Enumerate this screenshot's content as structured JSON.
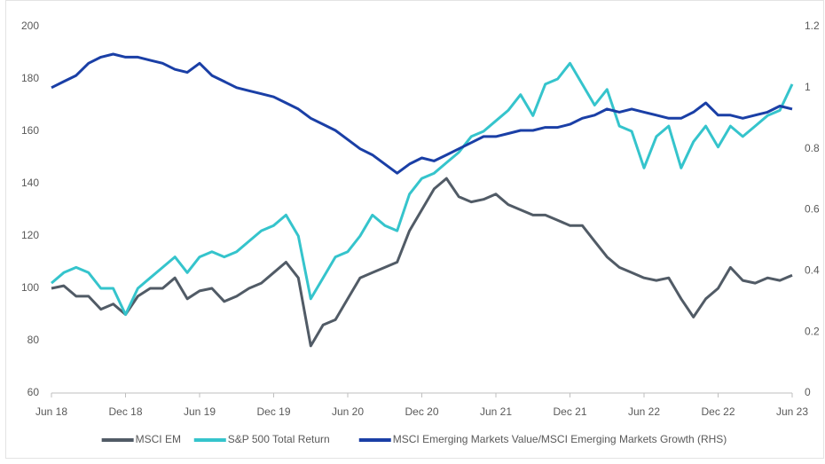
{
  "chart_data": {
    "type": "line",
    "categories": [
      "Jun 18",
      null,
      null,
      null,
      null,
      null,
      "Dec 18",
      null,
      null,
      null,
      null,
      null,
      "Jun 19",
      null,
      null,
      null,
      null,
      null,
      "Dec 19",
      null,
      null,
      null,
      null,
      null,
      "Jun 20",
      null,
      null,
      null,
      null,
      null,
      "Dec 20",
      null,
      null,
      null,
      null,
      null,
      "Jun 21",
      null,
      null,
      null,
      null,
      null,
      "Dec 21",
      null,
      null,
      null,
      null,
      null,
      "Jun 22",
      null,
      null,
      null,
      null,
      null,
      "Dec 22",
      null,
      null,
      null,
      null,
      null,
      "Jun 23"
    ],
    "series": [
      {
        "name": "MSCI EM",
        "color": "#515b66",
        "values": [
          100,
          101,
          97,
          97,
          92,
          94,
          90,
          97,
          100,
          100,
          104,
          96,
          99,
          100,
          95,
          97,
          100,
          102,
          106,
          110,
          104,
          78,
          86,
          88,
          96,
          104,
          106,
          108,
          110,
          122,
          130,
          138,
          142,
          135,
          133,
          134,
          136,
          132,
          130,
          128,
          128,
          126,
          124,
          124,
          118,
          112,
          108,
          106,
          104,
          103,
          104,
          96,
          89,
          96,
          100,
          108,
          103,
          102,
          104,
          103,
          105
        ]
      },
      {
        "name": "S&P 500 Total Return",
        "color": "#35c4cc",
        "values": [
          102,
          106,
          108,
          106,
          100,
          100,
          90,
          100,
          104,
          108,
          112,
          106,
          112,
          114,
          112,
          114,
          118,
          122,
          124,
          128,
          120,
          96,
          104,
          112,
          114,
          120,
          128,
          124,
          122,
          136,
          142,
          144,
          148,
          152,
          158,
          160,
          164,
          168,
          174,
          166,
          178,
          180,
          186,
          178,
          170,
          176,
          162,
          160,
          146,
          158,
          162,
          146,
          156,
          162,
          154,
          162,
          158,
          162,
          166,
          168,
          178
        ]
      },
      {
        "name": "MSCI Emerging Markets Value/MSCI Emerging Markets Growth (RHS)",
        "color": "#1a3fa6",
        "axis": "y2",
        "values": [
          1.0,
          1.02,
          1.04,
          1.08,
          1.1,
          1.11,
          1.1,
          1.1,
          1.09,
          1.08,
          1.06,
          1.05,
          1.08,
          1.04,
          1.02,
          1.0,
          0.99,
          0.98,
          0.97,
          0.95,
          0.93,
          0.9,
          0.88,
          0.86,
          0.83,
          0.8,
          0.78,
          0.75,
          0.72,
          0.75,
          0.77,
          0.76,
          0.78,
          0.8,
          0.82,
          0.84,
          0.84,
          0.85,
          0.86,
          0.86,
          0.87,
          0.87,
          0.88,
          0.9,
          0.91,
          0.93,
          0.92,
          0.93,
          0.92,
          0.91,
          0.9,
          0.9,
          0.92,
          0.95,
          0.91,
          0.91,
          0.9,
          0.91,
          0.92,
          0.94,
          0.93
        ]
      }
    ],
    "ylim": [
      60,
      200
    ],
    "yticks": [
      60,
      80,
      100,
      120,
      140,
      160,
      180,
      200
    ],
    "y2lim": [
      0,
      1.2
    ],
    "y2ticks": [
      0,
      0.2,
      0.4,
      0.6,
      0.8,
      1,
      1.2
    ],
    "grid": false,
    "legend": "bottom"
  }
}
